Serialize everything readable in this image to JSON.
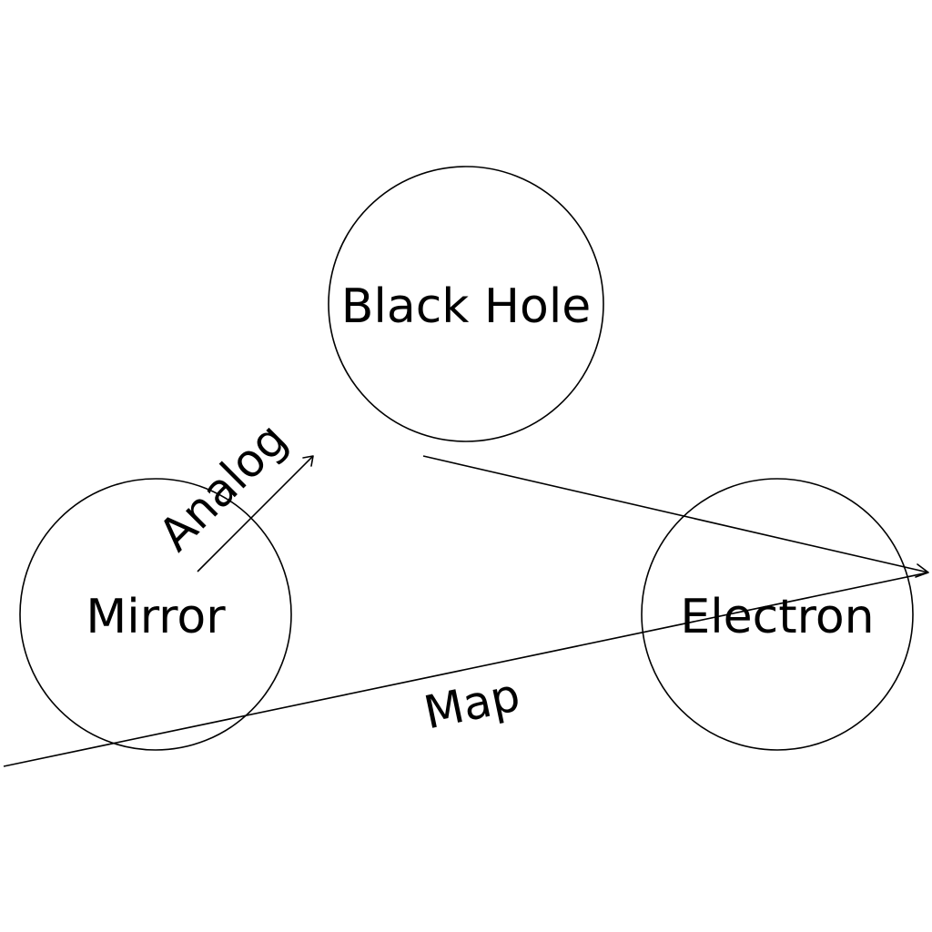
{
  "diagram": {
    "nodes": [
      {
        "id": "black-hole",
        "label": "Black Hole"
      },
      {
        "id": "mirror",
        "label": "Mirror"
      },
      {
        "id": "electron",
        "label": "Electron"
      }
    ],
    "edges": [
      {
        "id": "analog",
        "label": "Analog"
      },
      {
        "id": "map",
        "label": "Map"
      },
      {
        "id": "black-hole-to-electron",
        "label": ""
      }
    ]
  },
  "colors": {
    "stroke": "#000000",
    "background": "#ffffff"
  }
}
